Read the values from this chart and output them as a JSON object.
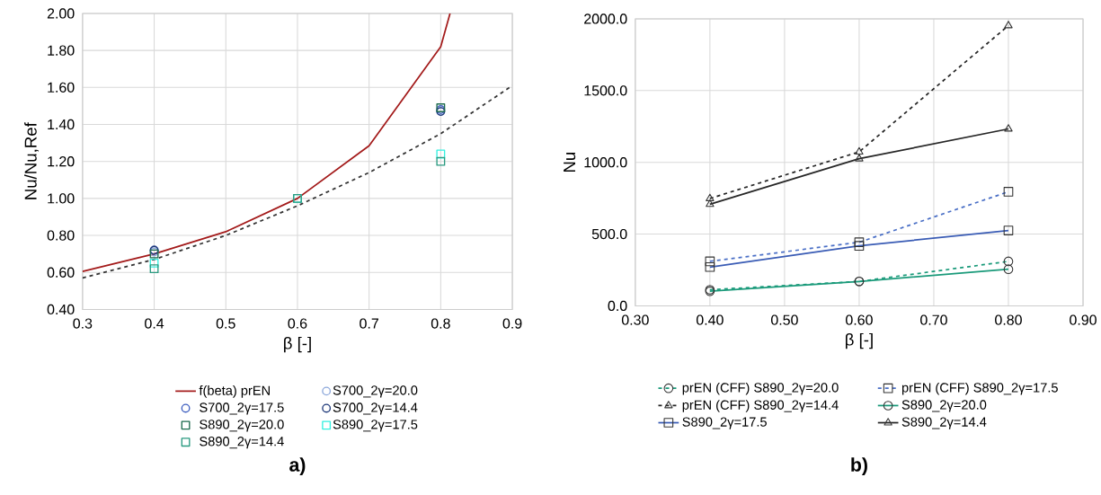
{
  "chart_data": [
    {
      "type": "line",
      "title": "a)",
      "xlabel": "β [-]",
      "ylabel": "Nu/Nu,Ref",
      "xlim": [
        0.3,
        0.9
      ],
      "ylim": [
        0.4,
        2.0
      ],
      "xticks": [
        0.3,
        0.4,
        0.5,
        0.6,
        0.7,
        0.8,
        0.9
      ],
      "yticks": [
        {
          "value": 0.4,
          "label": "0.40"
        },
        {
          "value": 0.6,
          "label": "0.60"
        },
        {
          "value": 0.8,
          "label": "0.80"
        },
        {
          "value": 1.0,
          "label": "1.00"
        },
        {
          "value": 1.2,
          "label": "1.20"
        },
        {
          "value": 1.4,
          "label": "1.40"
        },
        {
          "value": 1.6,
          "label": "1.60"
        },
        {
          "value": 1.8,
          "label": "1.80"
        },
        {
          "value": 2.0,
          "label": "2.00"
        }
      ],
      "grid": true,
      "legend": "bottom",
      "series": [
        {
          "name": "f(beta) prEN",
          "type": "line",
          "color": "#a31a1a",
          "marker": "none",
          "line_style": "solid",
          "x": [
            0.3,
            0.4,
            0.5,
            0.6,
            0.7,
            0.8,
            0.813
          ],
          "values": [
            0.605,
            0.7,
            0.82,
            1.0,
            1.285,
            1.82,
            2.0
          ]
        },
        {
          "name": "S700_2γ=20.0",
          "type": "scatter",
          "color": "#8ea9db",
          "marker": "circle",
          "x": [
            0.4,
            0.6,
            0.8
          ],
          "values": [
            0.71,
            null,
            1.47
          ]
        },
        {
          "name": "S700_2γ=17.5",
          "type": "scatter",
          "color": "#4060c0",
          "marker": "circle",
          "x": [
            0.4,
            0.6,
            0.8
          ],
          "values": [
            0.72,
            null,
            1.48
          ]
        },
        {
          "name": "S700_2γ=14.4",
          "type": "scatter",
          "color": "#203a7a",
          "marker": "circle",
          "x": [
            0.4,
            0.6,
            0.8
          ],
          "values": [
            0.72,
            null,
            1.47
          ]
        },
        {
          "name": "S890_2γ=20.0",
          "type": "scatter",
          "color": "#1e6b4e",
          "marker": "square",
          "x": [
            0.4,
            0.6,
            0.8
          ],
          "values": [
            0.7,
            null,
            1.49
          ]
        },
        {
          "name": "S890_2γ=17.5",
          "type": "scatter",
          "color": "#33f0e0",
          "marker": "square",
          "x": [
            0.4,
            0.6,
            0.8
          ],
          "values": [
            0.65,
            1.0,
            1.24
          ]
        },
        {
          "name": "S890_2γ=14.4",
          "type": "scatter",
          "color": "#2a9a80",
          "marker": "square",
          "x": [
            0.4,
            0.6,
            0.8
          ],
          "values": [
            0.62,
            1.0,
            1.2
          ]
        },
        {
          "type": "line",
          "color": "#333333",
          "marker": "none",
          "line_style": "dashed",
          "x": [
            0.3,
            0.4,
            0.5,
            0.6,
            0.7,
            0.8,
            0.9
          ],
          "values": [
            0.57,
            0.67,
            0.8,
            0.96,
            1.14,
            1.35,
            1.61
          ]
        }
      ]
    },
    {
      "type": "line",
      "title": "b)",
      "xlabel": "β [-]",
      "ylabel": "Nu",
      "xlim": [
        0.3,
        0.9
      ],
      "ylim": [
        0,
        2000
      ],
      "xticks": [
        {
          "value": 0.3,
          "label": "0.30"
        },
        {
          "value": 0.4,
          "label": "0.40"
        },
        {
          "value": 0.5,
          "label": "0.50"
        },
        {
          "value": 0.6,
          "label": "0.60"
        },
        {
          "value": 0.7,
          "label": "0.70"
        },
        {
          "value": 0.8,
          "label": "0.80"
        },
        {
          "value": 0.9,
          "label": "0.90"
        }
      ],
      "yticks": [
        {
          "value": 0,
          "label": "0.0"
        },
        {
          "value": 500,
          "label": "500.0"
        },
        {
          "value": 1000,
          "label": "1000.0"
        },
        {
          "value": 1500,
          "label": "1500.0"
        },
        {
          "value": 2000,
          "label": "2000.0"
        }
      ],
      "grid": true,
      "legend": "bottom",
      "series": [
        {
          "name": "prEN (CFF) S890_2γ=20.0",
          "type": "line",
          "color": "#1a9a7a",
          "marker": "circle",
          "line_style": "dashed",
          "x": [
            0.4,
            0.6,
            0.8
          ],
          "values": [
            112,
            170,
            310
          ]
        },
        {
          "name": "prEN (CFF) S890_2γ=17.5",
          "type": "line",
          "color": "#4a6fc6",
          "marker": "square",
          "line_style": "dashed",
          "x": [
            0.4,
            0.6,
            0.8
          ],
          "values": [
            310,
            443,
            795
          ]
        },
        {
          "name": "prEN (CFF) S890_2γ=14.4",
          "type": "line",
          "color": "#262626",
          "marker": "triangle",
          "line_style": "dashed",
          "x": [
            0.4,
            0.6,
            0.8
          ],
          "values": [
            748,
            1073,
            1953
          ]
        },
        {
          "name": "S890_2γ=20.0",
          "type": "line",
          "color": "#1a9a7a",
          "marker": "circle",
          "line_style": "solid",
          "x": [
            0.4,
            0.6,
            0.8
          ],
          "values": [
            102,
            170,
            255
          ]
        },
        {
          "name": "S890_2γ=17.5",
          "type": "line",
          "color": "#3a5cb5",
          "marker": "square",
          "line_style": "solid",
          "x": [
            0.4,
            0.6,
            0.8
          ],
          "values": [
            270,
            418,
            525
          ]
        },
        {
          "name": "S890_2γ=14.4",
          "type": "line",
          "color": "#262626",
          "marker": "triangle",
          "line_style": "solid",
          "x": [
            0.4,
            0.6,
            0.8
          ],
          "values": [
            708,
            1025,
            1233
          ]
        }
      ]
    }
  ]
}
